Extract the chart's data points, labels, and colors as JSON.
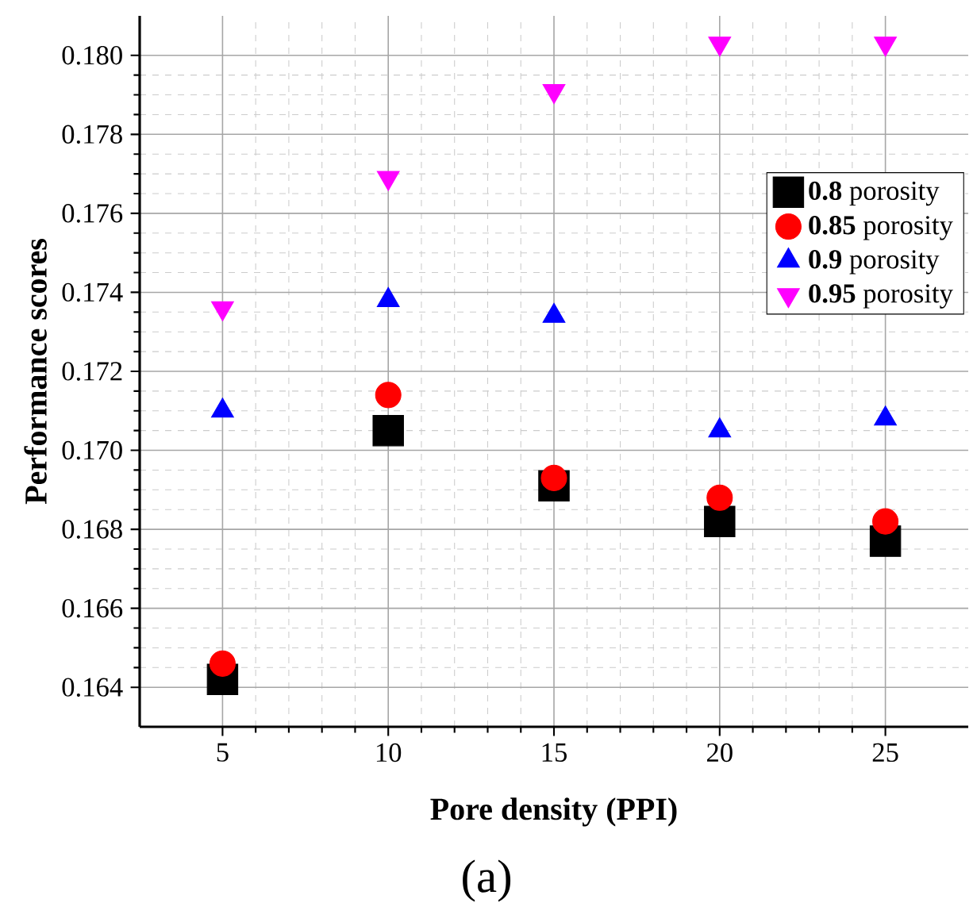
{
  "chart_data": {
    "type": "scatter",
    "xlabel": "Pore density (PPI)",
    "ylabel": "Performance scores",
    "annotations": [
      "(a)"
    ],
    "x": [
      5,
      10,
      15,
      20,
      25
    ],
    "series": [
      {
        "name": "**0.8** porosity",
        "color": "#000000",
        "marker": "square",
        "values": [
          0.1642,
          0.1705,
          0.1691,
          0.1682,
          0.1677
        ]
      },
      {
        "name": "**0.85** porosity",
        "color": "#ff0000",
        "marker": "circle",
        "values": [
          0.1646,
          0.1714,
          0.1693,
          0.1688,
          0.1682
        ]
      },
      {
        "name": "**0.9** porosity",
        "color": "#0000ff",
        "marker": "triangle",
        "values": [
          0.171,
          0.1738,
          0.1734,
          0.1705,
          0.1708
        ]
      },
      {
        "name": "**0.95** porosity",
        "color": "#ff00ff",
        "marker": "triangle-down",
        "values": [
          0.1736,
          0.1769,
          0.1791,
          0.1803,
          0.1803
        ]
      }
    ],
    "xlim": [
      2.5,
      27.5
    ],
    "ylim": [
      0.163,
      0.181
    ],
    "xticks": [
      5,
      10,
      15,
      20,
      25
    ],
    "yticks": [
      {
        "value": 0.164,
        "label": "0.164"
      },
      {
        "value": 0.166,
        "label": "0.166"
      },
      {
        "value": 0.168,
        "label": "0.168"
      },
      {
        "value": 0.17,
        "label": "0.170"
      },
      {
        "value": 0.172,
        "label": "0.172"
      },
      {
        "value": 0.174,
        "label": "0.174"
      },
      {
        "value": 0.176,
        "label": "0.176"
      },
      {
        "value": 0.178,
        "label": "0.178"
      },
      {
        "value": 0.18,
        "label": "0.180"
      }
    ],
    "grid": true,
    "legend": "right"
  }
}
